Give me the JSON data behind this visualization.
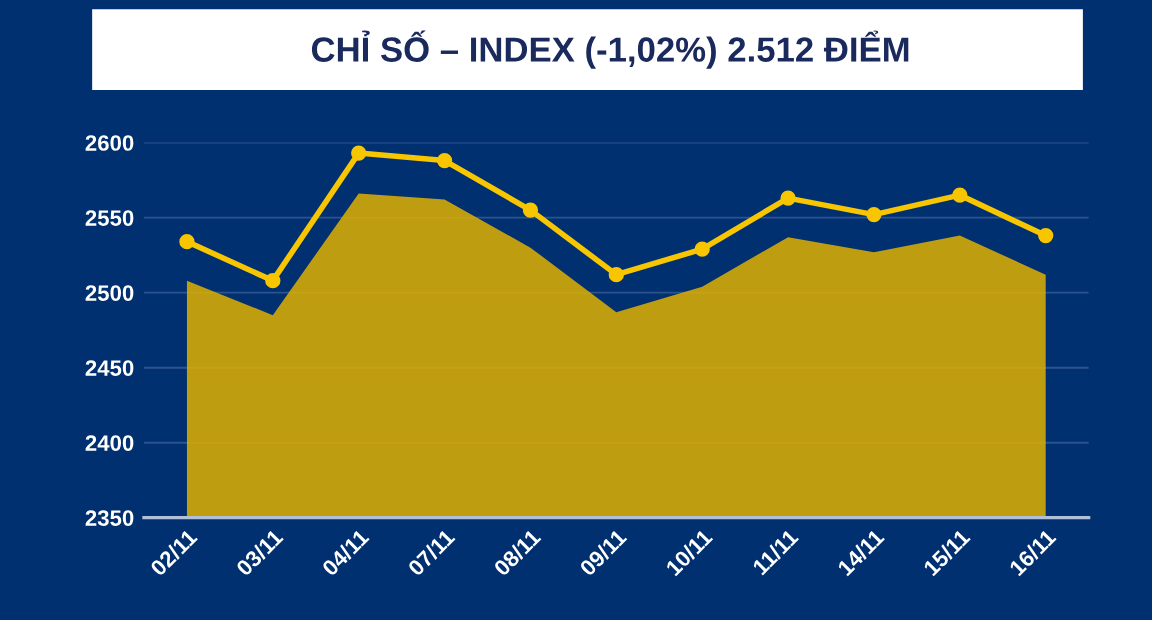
{
  "chart_data": {
    "type": "area",
    "title": "CHỈ SỐ – INDEX (-1,02%) 2.512 ĐIỂM",
    "categories": [
      "02/11",
      "03/11",
      "04/11",
      "07/11",
      "08/11",
      "09/11",
      "10/11",
      "11/11",
      "14/11",
      "15/11",
      "16/11"
    ],
    "series": [
      {
        "color": "#e0b000",
        "values": [
          2508,
          2485,
          2566,
          2562,
          2530,
          2487,
          2504,
          2537,
          2527,
          2538,
          2512
        ]
      },
      {
        "type": "line",
        "color": "#f7c600",
        "marker": "circle",
        "values": [
          2534,
          2508,
          2593,
          2588,
          2555,
          2512,
          2529,
          2563,
          2552,
          2565,
          2538
        ]
      }
    ],
    "ylim": [
      2350,
      2600
    ],
    "yticks": [
      2350,
      2400,
      2450,
      2500,
      2550,
      2600
    ],
    "grid": "y",
    "legend": false
  }
}
